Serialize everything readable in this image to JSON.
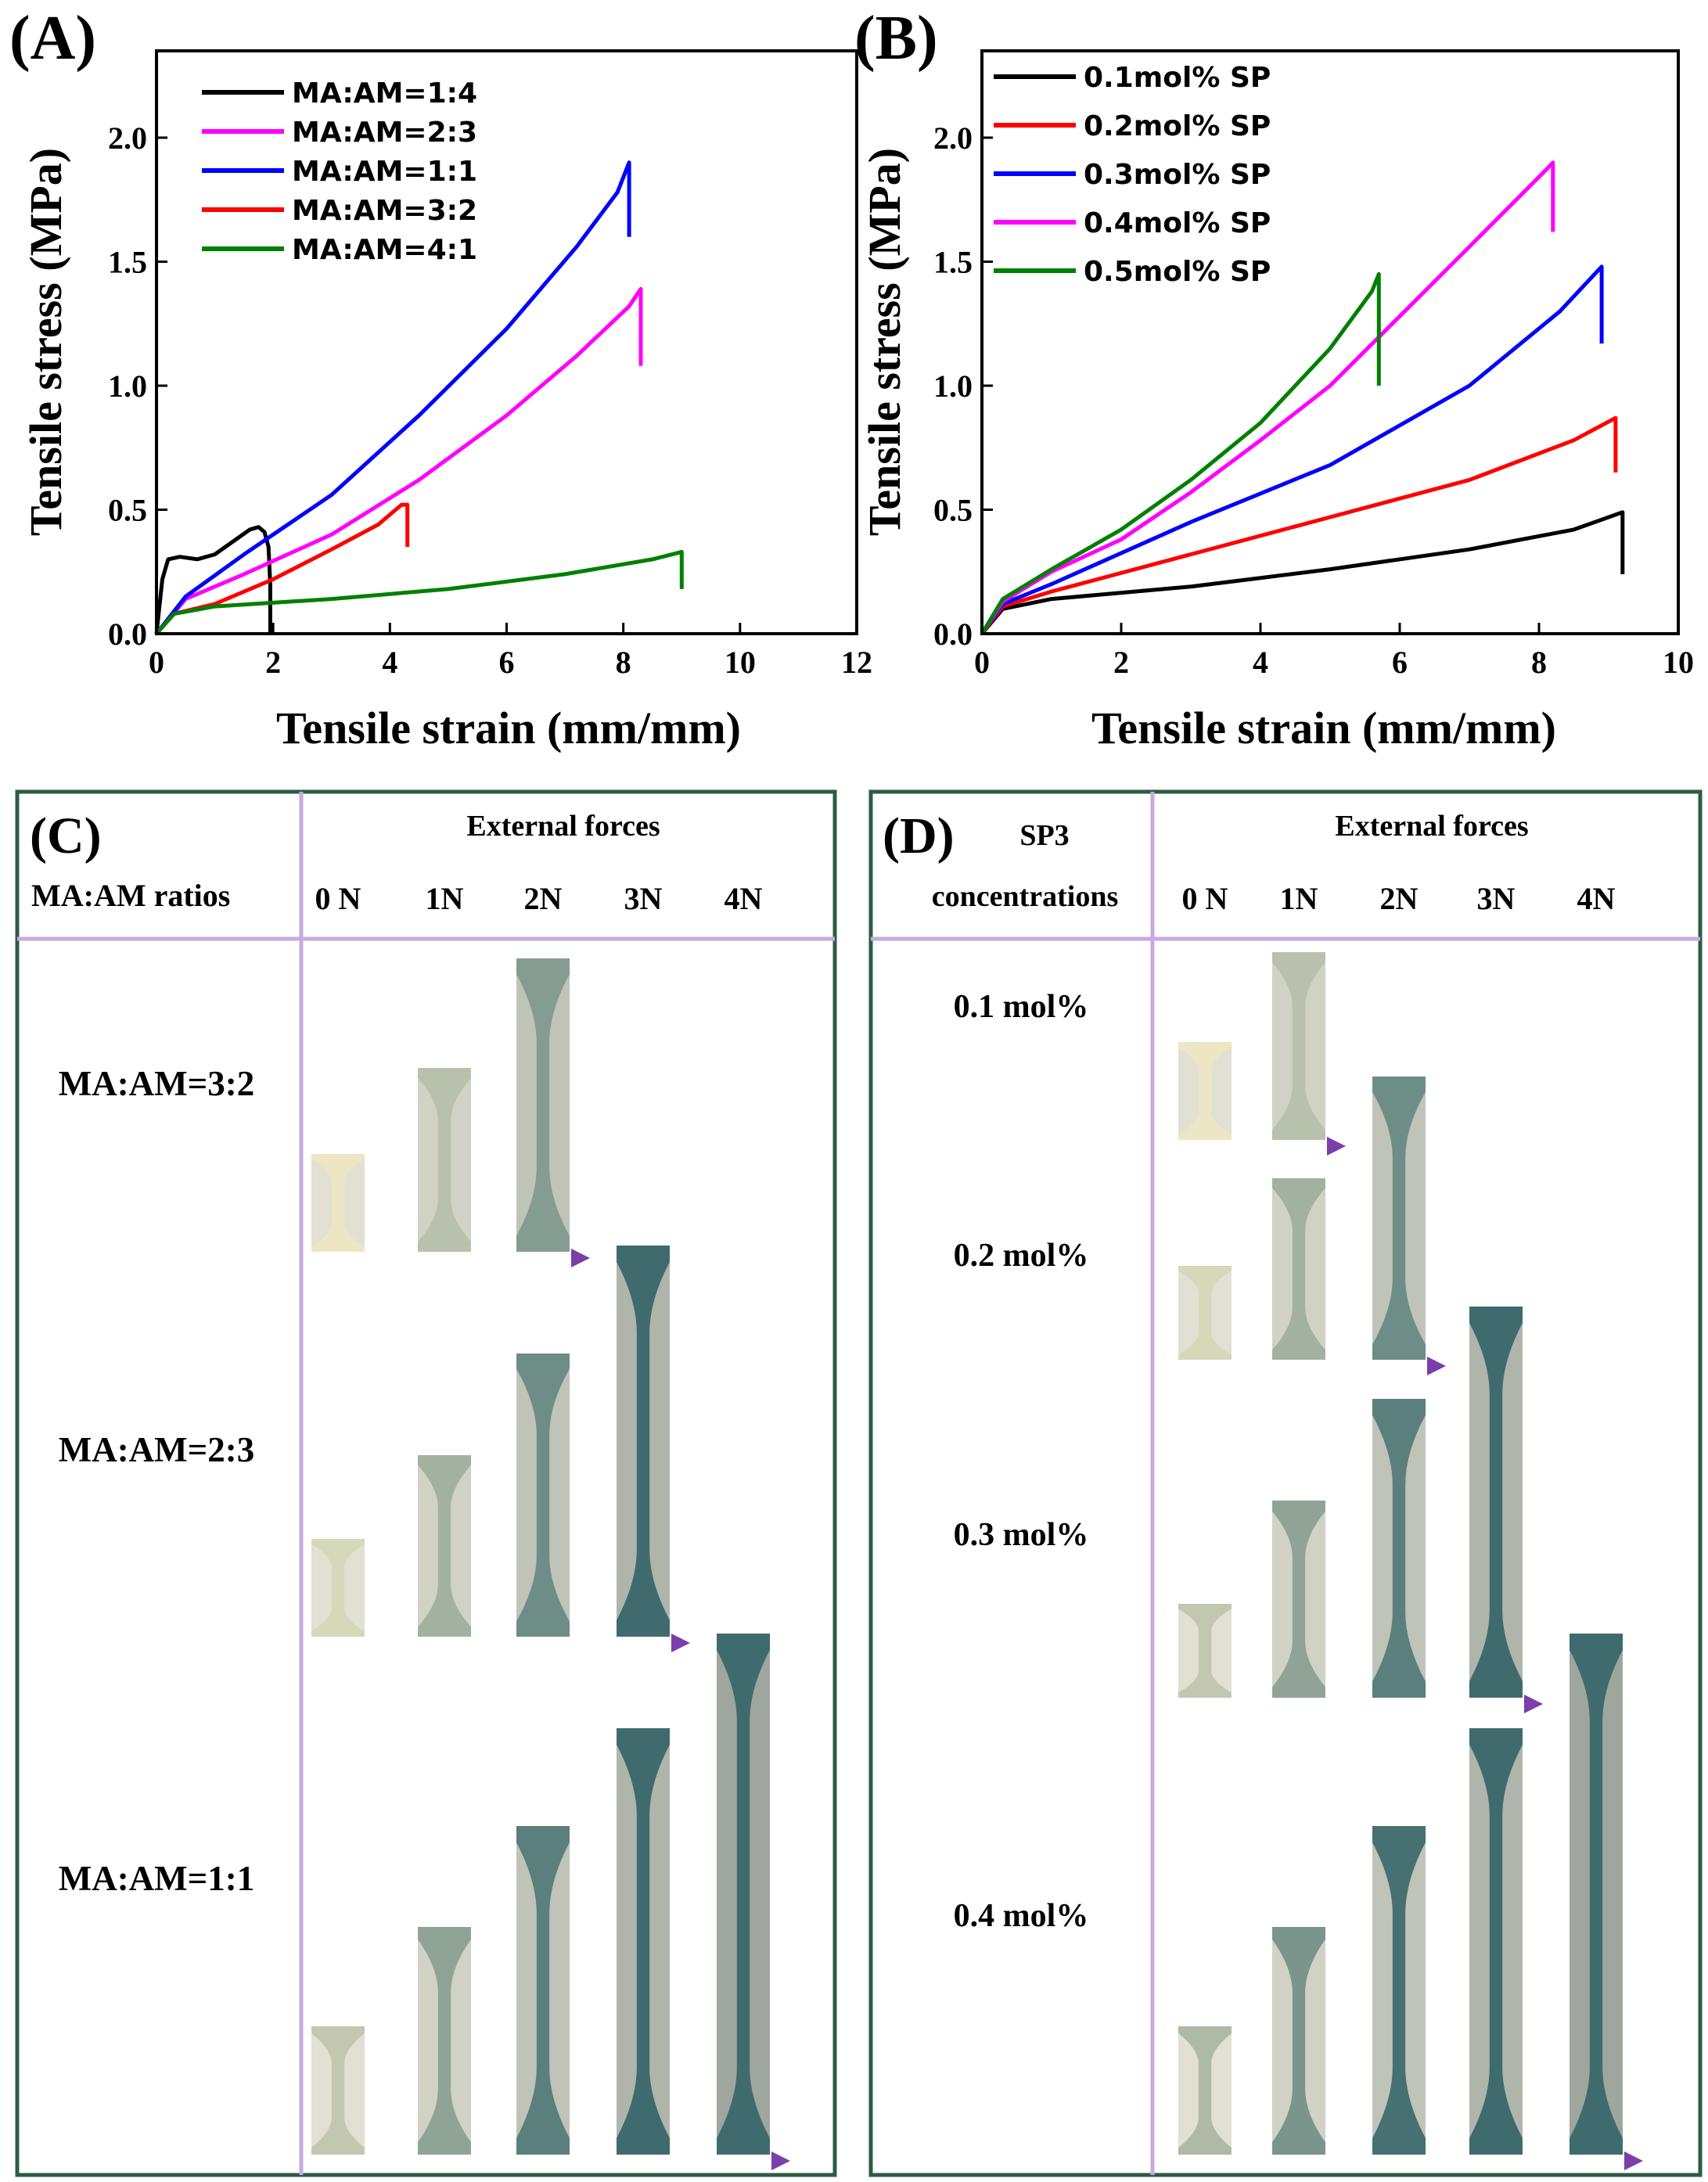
{
  "chart_data": [
    {
      "panel": "(A)",
      "type": "line",
      "xlabel": "Tensile strain (mm/mm)",
      "ylabel": "Tensile stress (MPa)",
      "xlim": [
        0,
        12
      ],
      "ylim": [
        0,
        2.35
      ],
      "xticks": [
        0,
        2,
        4,
        6,
        8,
        10,
        12
      ],
      "yticks": [
        0.0,
        0.5,
        1.0,
        1.5,
        2.0
      ],
      "xtick_labels": [
        "0",
        "2",
        "4",
        "6",
        "8",
        "10",
        "12"
      ],
      "ytick_labels": [
        "0.0",
        "0.5",
        "1.0",
        "1.5",
        "2.0"
      ],
      "legend_position": "top-left",
      "series": [
        {
          "name": "MA:AM=1:4",
          "color": "#000000",
          "x": [
            0,
            0.1,
            0.2,
            0.4,
            0.7,
            1.0,
            1.3,
            1.6,
            1.75,
            1.85,
            1.92,
            1.95,
            1.95
          ],
          "y": [
            0,
            0.22,
            0.3,
            0.31,
            0.3,
            0.32,
            0.37,
            0.42,
            0.43,
            0.41,
            0.35,
            0.2,
            0.0
          ]
        },
        {
          "name": "MA:AM=2:3",
          "color": "#ff00ff",
          "x": [
            0,
            0.5,
            1.5,
            3,
            4.5,
            6,
            7.2,
            8.1,
            8.3,
            8.3
          ],
          "y": [
            0,
            0.14,
            0.24,
            0.4,
            0.62,
            0.88,
            1.12,
            1.32,
            1.39,
            1.08
          ]
        },
        {
          "name": "MA:AM=1:1",
          "color": "#0000ff",
          "x": [
            0,
            0.5,
            1.5,
            3,
            4.5,
            6,
            7.2,
            7.9,
            8.1,
            8.1
          ],
          "y": [
            0,
            0.15,
            0.32,
            0.56,
            0.88,
            1.23,
            1.56,
            1.78,
            1.9,
            1.6
          ]
        },
        {
          "name": "MA:AM=3:2",
          "color": "#ff0000",
          "x": [
            0,
            0.3,
            1.0,
            2.0,
            3.0,
            3.8,
            4.2,
            4.3,
            4.3
          ],
          "y": [
            0,
            0.08,
            0.12,
            0.22,
            0.34,
            0.44,
            0.52,
            0.52,
            0.35
          ]
        },
        {
          "name": "MA:AM=4:1",
          "color": "#008000",
          "x": [
            0,
            0.3,
            1.0,
            3.0,
            5.0,
            7.0,
            8.5,
            9.0,
            9.0
          ],
          "y": [
            0,
            0.08,
            0.11,
            0.14,
            0.18,
            0.24,
            0.3,
            0.33,
            0.18
          ]
        }
      ]
    },
    {
      "panel": "(B)",
      "type": "line",
      "xlabel": "Tensile strain (mm/mm)",
      "ylabel": "Tensile stress (MPa)",
      "xlim": [
        0,
        10
      ],
      "ylim": [
        0,
        2.35
      ],
      "xticks": [
        0,
        2,
        4,
        6,
        8,
        10
      ],
      "yticks": [
        0.0,
        0.5,
        1.0,
        1.5,
        2.0
      ],
      "xtick_labels": [
        "0",
        "2",
        "4",
        "6",
        "8",
        "10"
      ],
      "ytick_labels": [
        "0.0",
        "0.5",
        "1.0",
        "1.5",
        "2.0"
      ],
      "legend_position": "top-left",
      "series": [
        {
          "name": "0.1mol% SP",
          "color": "#000000",
          "x": [
            0,
            0.3,
            1.0,
            3,
            5,
            7,
            8.5,
            9.2,
            9.2
          ],
          "y": [
            0,
            0.1,
            0.14,
            0.19,
            0.26,
            0.34,
            0.42,
            0.49,
            0.24
          ]
        },
        {
          "name": "0.2mol% SP",
          "color": "#ff0000",
          "x": [
            0,
            0.3,
            1.0,
            3,
            5,
            7,
            8.5,
            9.1,
            9.1
          ],
          "y": [
            0,
            0.11,
            0.17,
            0.32,
            0.47,
            0.62,
            0.78,
            0.87,
            0.65
          ]
        },
        {
          "name": "0.3mol% SP",
          "color": "#0000ff",
          "x": [
            0,
            0.3,
            1.0,
            3,
            5,
            7,
            8.3,
            8.9,
            8.9
          ],
          "y": [
            0,
            0.12,
            0.2,
            0.45,
            0.68,
            1.0,
            1.3,
            1.48,
            1.17
          ]
        },
        {
          "name": "0.4mol% SP",
          "color": "#ff00ff",
          "x": [
            0,
            0.3,
            1.0,
            2,
            3,
            4,
            5,
            6,
            7,
            8.1,
            8.2,
            8.2
          ],
          "y": [
            0,
            0.13,
            0.25,
            0.38,
            0.57,
            0.78,
            1.0,
            1.28,
            1.56,
            1.87,
            1.9,
            1.62
          ]
        },
        {
          "name": "0.5mol% SP",
          "color": "#008000",
          "x": [
            0,
            0.3,
            1.0,
            2,
            3,
            4,
            5,
            5.6,
            5.7,
            5.7
          ],
          "y": [
            0,
            0.14,
            0.26,
            0.42,
            0.62,
            0.85,
            1.15,
            1.38,
            1.45,
            1.0
          ]
        }
      ]
    }
  ],
  "panelC": {
    "label": "(C)",
    "row_header": "MA:AM ratios",
    "col_header": "External forces",
    "forces": [
      "0 N",
      "1N",
      "2N",
      "3N",
      "4N"
    ],
    "rows": [
      "MA:AM=3:2",
      "MA:AM=2:3",
      "MA:AM=1:1"
    ],
    "specimen_counts": [
      3,
      4,
      5
    ]
  },
  "panelD": {
    "label": "(D)",
    "row_header_line1": "SP3",
    "row_header_line2": "concentrations",
    "col_header": "External forces",
    "forces": [
      "0 N",
      "1N",
      "2N",
      "3N",
      "4N"
    ],
    "rows": [
      "0.1 mol%",
      "0.2 mol%",
      "0.3 mol%",
      "0.4 mol%"
    ],
    "specimen_counts": [
      2,
      3,
      4,
      5
    ]
  },
  "colors": {
    "frame": "#2e5b44",
    "grid_lines": "#c8a9e0",
    "arrow_start": "#e4d0ef",
    "arrow_end": "#7a3fa8",
    "specimen_light": "#d8d6c8",
    "specimen_dark": "#3f6b6f"
  }
}
